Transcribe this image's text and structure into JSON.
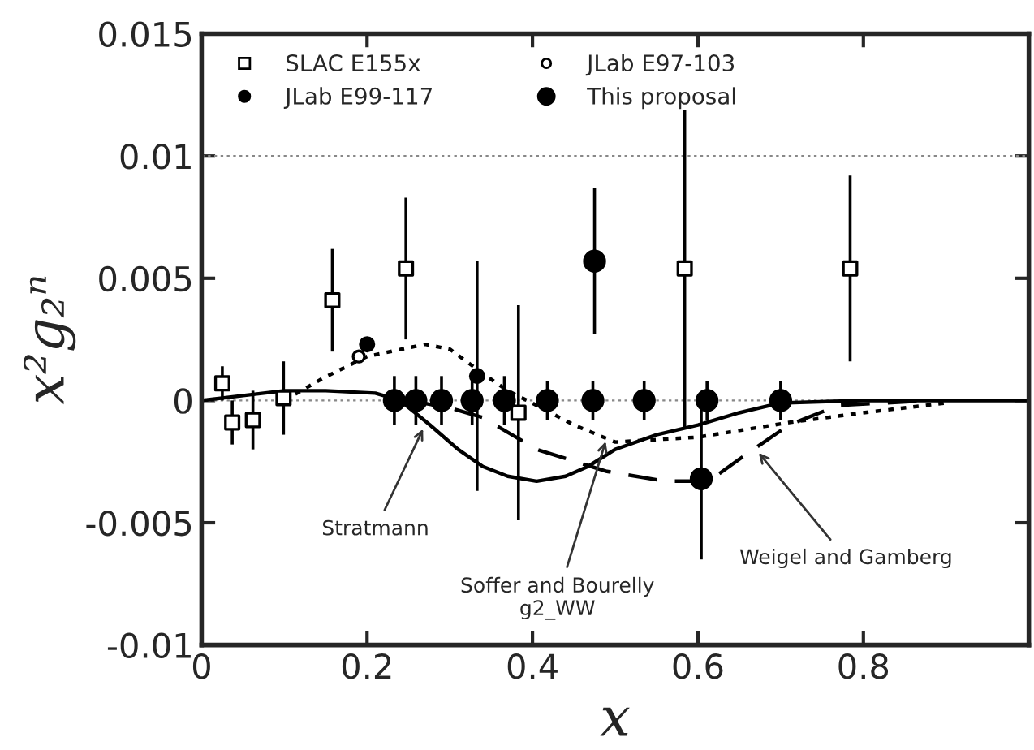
{
  "chart_data": {
    "type": "scatter",
    "xlabel": "x",
    "ylabel": "x²g₂ⁿ",
    "xlim": [
      0,
      1
    ],
    "ylim": [
      -0.01,
      0.015
    ],
    "xticks": [
      0,
      0.2,
      0.4,
      0.6,
      0.8
    ],
    "yticks": [
      -0.01,
      -0.005,
      0,
      0.005,
      0.01,
      0.015
    ],
    "legend": "top left",
    "ref_lines": [
      {
        "axis": "y",
        "value": 0.01,
        "line_style": "dotted",
        "color": "#888888"
      },
      {
        "axis": "y",
        "value": 0,
        "line_style": "dotted",
        "color": "#888888"
      }
    ],
    "series": [
      {
        "name": "SLAC E155x",
        "marker": "square",
        "color": "#000000",
        "x": [
          0.025,
          0.037,
          0.062,
          0.099,
          0.158,
          0.247,
          0.383,
          0.584,
          0.784
        ],
        "values": [
          0.0007,
          -0.0009,
          -0.0008,
          0.0001,
          0.0041,
          0.0054,
          -0.0005,
          0.0054,
          0.0054
        ],
        "errors": [
          0.0007,
          0.0009,
          0.0012,
          0.0015,
          0.0021,
          0.0029,
          0.0044,
          0.0065,
          0.0038
        ]
      },
      {
        "name": "JLab E99-117",
        "marker": "circle",
        "color": "#000000",
        "x": [
          0.2,
          0.333
        ],
        "values": [
          0.0023,
          0.001
        ],
        "errors": [
          null,
          0.0047
        ]
      },
      {
        "name": "JLab E97-103",
        "marker": "circle",
        "color": "#000000",
        "x": [
          0.19
        ],
        "values": [
          0.0018
        ],
        "errors": [
          null
        ]
      },
      {
        "name": "This proposal",
        "marker": "circle",
        "color": "#000000",
        "x": [
          0.233,
          0.259,
          0.29,
          0.327,
          0.366,
          0.418,
          0.473,
          0.535,
          0.611,
          0.7,
          0.475,
          0.604
        ],
        "values": [
          0,
          0,
          0,
          0,
          0,
          0,
          0,
          0,
          0,
          0,
          0.0057,
          -0.0032
        ],
        "errors": [
          0.001,
          0.001,
          0.001,
          0.001,
          0.001,
          0.0008,
          0.0008,
          0.0008,
          0.0008,
          0.0008,
          0.003,
          0.0033
        ]
      },
      {
        "type": "line",
        "line_style": "solid",
        "color": "#000000",
        "x": [
          0,
          0.05,
          0.1,
          0.15,
          0.21,
          0.24,
          0.276,
          0.31,
          0.34,
          0.37,
          0.405,
          0.44,
          0.467,
          0.5,
          0.55,
          0.6,
          0.65,
          0.7,
          0.8,
          1.0
        ],
        "values": [
          0,
          0.0002,
          0.0004,
          0.0004,
          0.0003,
          0,
          -0.001,
          -0.002,
          -0.0027,
          -0.0031,
          -0.0033,
          -0.0031,
          -0.0027,
          -0.002,
          -0.0014,
          -0.001,
          -0.0005,
          -0.0001,
          0,
          0
        ]
      },
      {
        "type": "line",
        "line_style": "dotted",
        "color": "#000000",
        "x": [
          0.1,
          0.146,
          0.2,
          0.27,
          0.3,
          0.34,
          0.37,
          0.405,
          0.45,
          0.5,
          0.6,
          0.71,
          0.8,
          0.9
        ],
        "values": [
          0,
          0.0009,
          0.0018,
          0.0023,
          0.0021,
          0.0011,
          0.0004,
          -0.0002,
          -0.001,
          -0.0017,
          -0.0015,
          -0.0009,
          -0.0005,
          -0.0001
        ]
      },
      {
        "type": "line",
        "line_style": "dashed",
        "color": "#000000",
        "x": [
          0.25,
          0.3,
          0.34,
          0.405,
          0.49,
          0.56,
          0.613,
          0.65,
          0.71,
          0.77,
          0.88
        ],
        "values": [
          0,
          -0.0003,
          -0.0007,
          -0.002,
          -0.0029,
          -0.0033,
          -0.0033,
          -0.0024,
          -0.001,
          -0.0002,
          0
        ]
      }
    ],
    "annotations": [
      {
        "text": "Stratmann",
        "x": 0.27,
        "y": -0.001
      },
      {
        "text": "Soffer and Bourelly\ng2_WW",
        "x": 0.49,
        "y": -0.0015
      },
      {
        "text": "Weigel and Gamberg",
        "x": 0.67,
        "y": -0.002
      }
    ]
  }
}
